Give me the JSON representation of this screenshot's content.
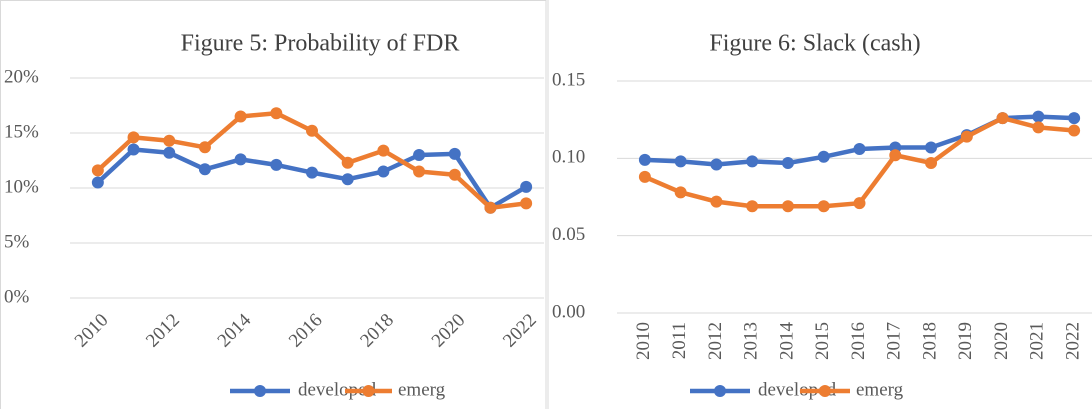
{
  "chart_data": [
    {
      "type": "line",
      "title": "Figure 5: Probability of FDR",
      "categories": [
        "2010",
        null,
        "2012",
        null,
        "2014",
        null,
        "2016",
        null,
        "2018",
        null,
        "2020",
        null,
        "2022"
      ],
      "series": [
        {
          "name": "developed",
          "color": "#4472c4",
          "values": [
            10.5,
            13.5,
            13.2,
            11.7,
            12.6,
            12.1,
            11.4,
            10.8,
            11.5,
            13.0,
            13.1,
            8.2,
            10.1
          ]
        },
        {
          "name": "emerg",
          "color": "#ed7d31",
          "values": [
            11.6,
            14.6,
            14.3,
            13.7,
            16.5,
            16.8,
            15.2,
            12.3,
            13.4,
            11.5,
            11.2,
            8.2,
            8.6
          ]
        }
      ],
      "ylim": [
        0,
        20
      ],
      "yticks": [
        {
          "value": 0,
          "label": "0%"
        },
        {
          "value": 5,
          "label": "5%"
        },
        {
          "value": 10,
          "label": "10%"
        },
        {
          "value": 15,
          "label": "15%"
        },
        {
          "value": 20,
          "label": "20%"
        }
      ],
      "grid": true,
      "legend": "bottom"
    },
    {
      "type": "line",
      "title": "Figure 6: Slack (cash)",
      "categories": [
        "2010",
        "2011",
        "2012",
        "2013",
        "2014",
        "2015",
        "2016",
        "2017",
        "2018",
        "2019",
        "2020",
        "2021",
        "2022"
      ],
      "series": [
        {
          "name": "developed",
          "color": "#4472c4",
          "values": [
            0.099,
            0.098,
            0.096,
            0.098,
            0.097,
            0.101,
            0.106,
            0.107,
            0.107,
            0.115,
            0.126,
            0.127,
            0.126
          ]
        },
        {
          "name": "emerg",
          "color": "#ed7d31",
          "values": [
            0.088,
            0.078,
            0.072,
            0.069,
            0.069,
            0.069,
            0.071,
            0.102,
            0.097,
            0.114,
            0.126,
            0.12,
            0.118
          ]
        }
      ],
      "ylim": [
        0,
        0.15
      ],
      "yticks": [
        {
          "value": 0,
          "label": "0.00"
        },
        0.05,
        {
          "value": 0.1,
          "label": "0.10"
        },
        0.15
      ],
      "grid": true,
      "legend": "bottom"
    }
  ]
}
